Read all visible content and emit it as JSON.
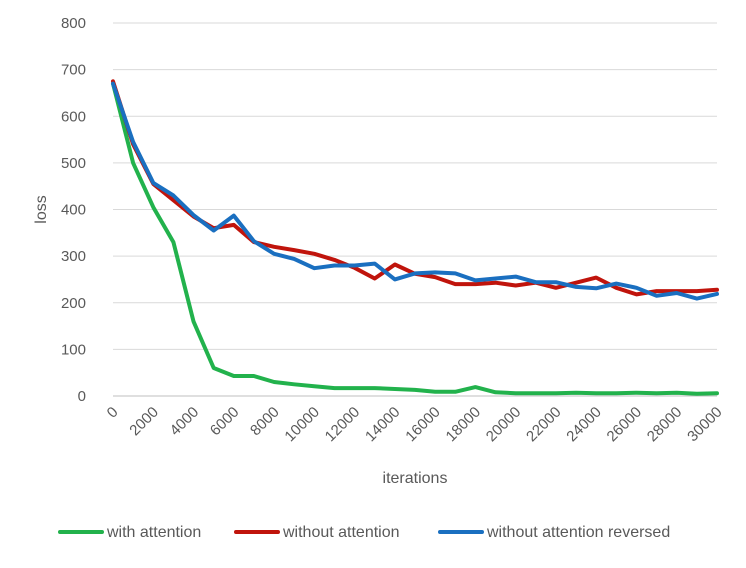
{
  "chart_data": {
    "type": "line",
    "title": "",
    "xlabel": "iterations",
    "ylabel": "loss",
    "xlim": [
      0,
      30000
    ],
    "ylim": [
      0,
      800
    ],
    "y_ticks": [
      "0",
      "100",
      "200",
      "300",
      "400",
      "500",
      "600",
      "700",
      "800"
    ],
    "x_ticks": [
      "0",
      "2000",
      "4000",
      "6000",
      "8000",
      "10000",
      "12000",
      "14000",
      "16000",
      "18000",
      "20000",
      "22000",
      "24000",
      "26000",
      "28000",
      "30000"
    ],
    "grid": true,
    "legend_position": "bottom",
    "x": [
      0,
      1000,
      2000,
      3000,
      4000,
      5000,
      6000,
      7000,
      8000,
      9000,
      10000,
      11000,
      12000,
      13000,
      14000,
      15000,
      16000,
      17000,
      18000,
      19000,
      20000,
      21000,
      22000,
      23000,
      24000,
      25000,
      26000,
      27000,
      28000,
      29000,
      30000
    ],
    "series": [
      {
        "name": "with attention",
        "color": "#22b24c",
        "values": [
          670,
          500,
          405,
          330,
          160,
          60,
          43,
          43,
          30,
          25,
          21,
          17,
          17,
          17,
          15,
          13,
          9,
          9,
          19,
          8,
          6,
          6,
          6,
          7,
          6,
          6,
          7,
          6,
          7,
          5,
          6
        ]
      },
      {
        "name": "without attention",
        "color": "#c0140c",
        "values": [
          675,
          540,
          455,
          420,
          385,
          360,
          367,
          330,
          320,
          313,
          305,
          292,
          275,
          252,
          282,
          262,
          255,
          240,
          240,
          243,
          237,
          243,
          232,
          243,
          254,
          232,
          218,
          225,
          225,
          225,
          228
        ]
      },
      {
        "name": "without attention reversed",
        "color": "#1a6fc0",
        "values": [
          670,
          545,
          457,
          430,
          388,
          355,
          387,
          332,
          305,
          294,
          274,
          280,
          280,
          284,
          250,
          263,
          265,
          263,
          248,
          252,
          256,
          244,
          244,
          234,
          231,
          241,
          232,
          215,
          221,
          209,
          219
        ]
      }
    ]
  }
}
